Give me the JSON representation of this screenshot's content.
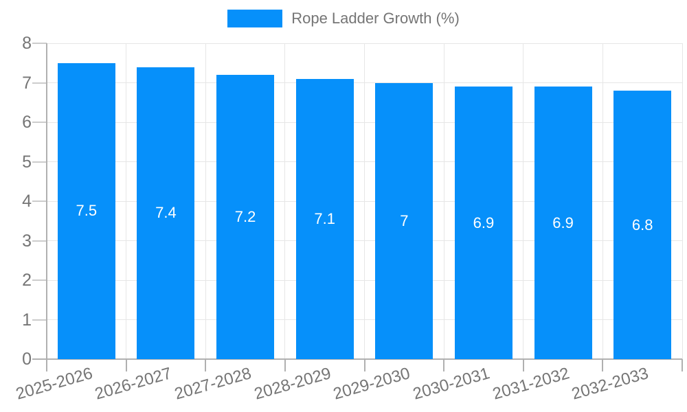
{
  "chart_data": {
    "type": "bar",
    "title": "",
    "xlabel": "",
    "ylabel": "",
    "categories": [
      "2025-2026",
      "2026-2027",
      "2027-2028",
      "2028-2029",
      "2029-2030",
      "2030-2031",
      "2031-2032",
      "2032-2033"
    ],
    "series": [
      {
        "name": "Rope Ladder Growth (%)",
        "values": [
          7.5,
          7.4,
          7.2,
          7.1,
          7,
          6.9,
          6.9,
          6.8
        ],
        "labels": [
          "7.5",
          "7.4",
          "7.2",
          "7.1",
          "7",
          "6.9",
          "6.9",
          "6.8"
        ]
      }
    ],
    "ylim": [
      0,
      8
    ],
    "yticks": [
      0,
      1,
      2,
      3,
      4,
      5,
      6,
      7,
      8
    ],
    "grid": "on",
    "legend_position": "top-center",
    "colors": {
      "bar": "#0690FA",
      "bar_label": "#ffffff",
      "axis_text": "#757575",
      "gridline": "#e6e6e6",
      "tick": "#cccccc",
      "axis_line": "#b0b0b0",
      "legend_text": "#757575"
    }
  }
}
